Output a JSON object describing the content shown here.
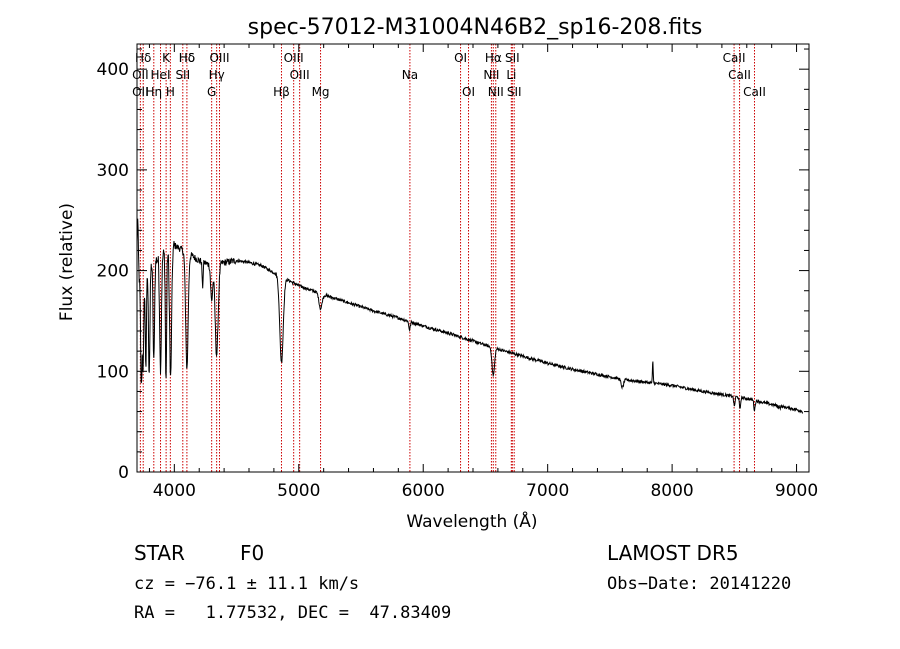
{
  "chart_data": {
    "type": "line",
    "title": "spec-57012-M31004N46B2_sp16-208.fits",
    "xlabel": "Wavelength (Å)",
    "ylabel": "Flux (relative)",
    "xlim": [
      3700,
      9100
    ],
    "ylim": [
      0,
      425
    ],
    "xticks": [
      4000,
      5000,
      6000,
      7000,
      8000,
      9000
    ],
    "yticks": [
      0,
      100,
      200,
      300,
      400
    ],
    "grid": false,
    "continuum": {
      "x": [
        3700,
        3800,
        3900,
        4000,
        4100,
        4200,
        4300,
        4400,
        4500,
        4600,
        4700,
        4800,
        5000,
        5200,
        5400,
        5600,
        5800,
        6000,
        6200,
        6400,
        6600,
        6800,
        7000,
        7200,
        7400,
        7600,
        7800,
        8000,
        8200,
        8400,
        8600,
        8800,
        9000,
        9050
      ],
      "y": [
        190,
        205,
        215,
        225,
        218,
        210,
        205,
        208,
        210,
        208,
        205,
        198,
        185,
        176,
        168,
        160,
        153,
        145,
        138,
        130,
        122,
        115,
        108,
        102,
        97,
        92,
        89,
        86,
        81,
        77,
        73,
        67,
        62,
        60
      ]
    },
    "absorption_features": [
      {
        "x": 3735,
        "depth": 110,
        "width": 6
      },
      {
        "x": 3750,
        "depth": 90,
        "width": 5
      },
      {
        "x": 3771,
        "depth": 95,
        "width": 5
      },
      {
        "x": 3798,
        "depth": 105,
        "width": 6
      },
      {
        "x": 3835,
        "depth": 100,
        "width": 6
      },
      {
        "x": 3889,
        "depth": 110,
        "width": 7
      },
      {
        "x": 3933,
        "depth": 130,
        "width": 5
      },
      {
        "x": 3970,
        "depth": 130,
        "width": 8
      },
      {
        "x": 4101,
        "depth": 115,
        "width": 10
      },
      {
        "x": 4227,
        "depth": 25,
        "width": 4
      },
      {
        "x": 4300,
        "depth": 35,
        "width": 8
      },
      {
        "x": 4340,
        "depth": 90,
        "width": 12
      },
      {
        "x": 4861,
        "depth": 85,
        "width": 14
      },
      {
        "x": 5175,
        "depth": 15,
        "width": 12
      },
      {
        "x": 5890,
        "depth": 8,
        "width": 6
      },
      {
        "x": 6563,
        "depth": 28,
        "width": 10
      },
      {
        "x": 7600,
        "depth": 8,
        "width": 10
      },
      {
        "x": 8500,
        "depth": 10,
        "width": 5
      },
      {
        "x": 8545,
        "depth": 12,
        "width": 5
      },
      {
        "x": 8662,
        "depth": 10,
        "width": 5
      },
      {
        "x": 8860,
        "depth": 8,
        "width": 5
      }
    ],
    "emission_features": [
      {
        "x": 3705,
        "height": 60,
        "width": 5
      },
      {
        "x": 7845,
        "height": 22,
        "width": 3
      },
      {
        "x": 8860,
        "height": 10,
        "width": 3
      }
    ],
    "line_markers": [
      {
        "label": "Hδ",
        "x": 4101,
        "row": 1
      },
      {
        "label": "K",
        "x": 3934,
        "row": 1
      },
      {
        "label": "Hα",
        "x": 6563,
        "row": 1
      },
      {
        "label": "OII",
        "x": 3727,
        "row": 2
      },
      {
        "label": "HeI",
        "x": 3889,
        "row": 2
      },
      {
        "label": "SII",
        "x": 4068,
        "row": 2
      },
      {
        "label": "Hδ",
        "x": 4101,
        "row": 1
      },
      {
        "label": "OIII",
        "x": 4363,
        "row": 1
      },
      {
        "label": "Hγ",
        "x": 4340,
        "row": 2
      },
      {
        "label": "G",
        "x": 4300,
        "row": 3
      },
      {
        "label": "OIII",
        "x": 4959,
        "row": 1
      },
      {
        "label": "OIII",
        "x": 5007,
        "row": 2
      },
      {
        "label": "Hβ",
        "x": 4861,
        "row": 3
      },
      {
        "label": "Mg",
        "x": 5175,
        "row": 3
      },
      {
        "label": "Na",
        "x": 5893,
        "row": 2
      },
      {
        "label": "OI",
        "x": 6300,
        "row": 1
      },
      {
        "label": "OI",
        "x": 6364,
        "row": 3
      },
      {
        "label": "NII",
        "x": 6548,
        "row": 2
      },
      {
        "label": "NII",
        "x": 6583,
        "row": 3
      },
      {
        "label": "SII",
        "x": 6716,
        "row": 1
      },
      {
        "label": "SII",
        "x": 6731,
        "row": 3
      },
      {
        "label": "Li",
        "x": 6708,
        "row": 2
      },
      {
        "label": "CaII",
        "x": 8498,
        "row": 1
      },
      {
        "label": "CaII",
        "x": 8542,
        "row": 2
      },
      {
        "label": "CaII",
        "x": 8662,
        "row": 3
      },
      {
        "label": "OII",
        "x": 3727,
        "row": 3
      },
      {
        "label": "Hη",
        "x": 3835,
        "row": 3
      },
      {
        "label": "H",
        "x": 3968,
        "row": 3
      },
      {
        "label": "Hδ",
        "x": 3750,
        "row": 1
      }
    ],
    "marker_labels_row1": "Hδ K Hδ OIII OI HαSII CaII",
    "marker_color": "#cc0000"
  },
  "footer": {
    "object_class": "STAR",
    "subclass": "F0",
    "survey": "LAMOST DR5",
    "redshift": "cz = −76.1 ± 11.1 km/s",
    "obs_date": "Obs−Date: 20141220",
    "coords": "RA =   1.77532, DEC =  47.83409"
  }
}
